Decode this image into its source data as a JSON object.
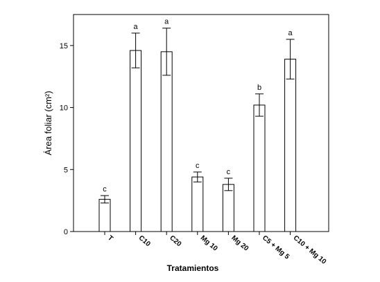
{
  "chart_data": {
    "type": "bar",
    "categories": [
      "T",
      "C10",
      "C20",
      "Mg 10",
      "Mg 20",
      "C5 + Mg 5",
      "C10 + Mg 10"
    ],
    "values": [
      2.6,
      14.6,
      14.5,
      4.4,
      3.8,
      10.2,
      13.9
    ],
    "error": [
      0.3,
      1.4,
      1.9,
      0.4,
      0.5,
      0.9,
      1.6
    ],
    "significance": [
      "c",
      "a",
      "a",
      "c",
      "c",
      "b",
      "a"
    ],
    "yticks": [
      0,
      5,
      10,
      15
    ],
    "ylim": [
      0,
      17.5
    ],
    "xlabel": "Tratamientos",
    "ylabel": "Área foliar (cm²)",
    "grid": false,
    "bar_fill": "#ffffff",
    "bar_stroke": "#000000"
  }
}
